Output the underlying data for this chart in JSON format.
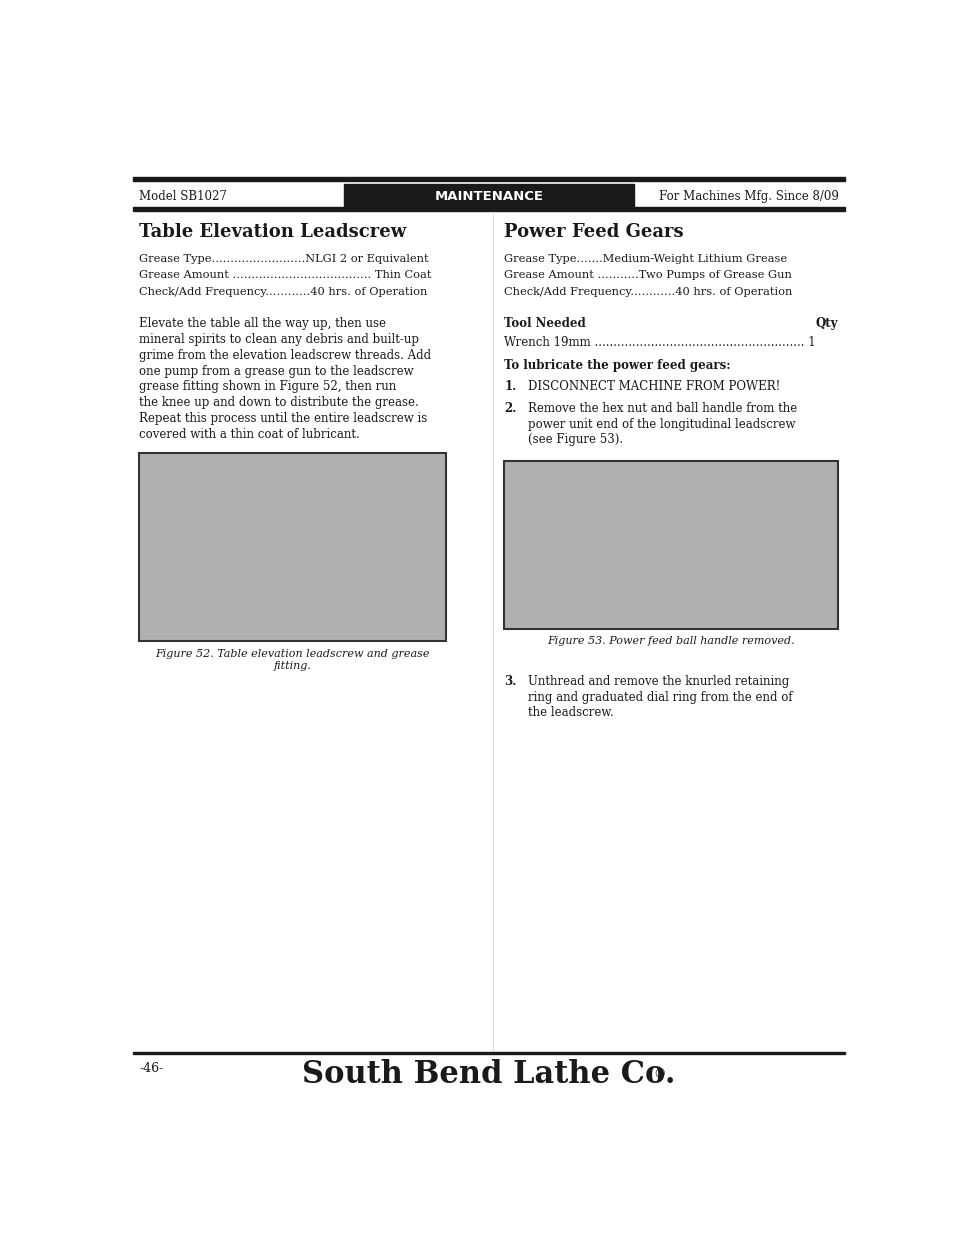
{
  "page_width": 9.54,
  "page_height": 12.35,
  "bg_color": "#ffffff",
  "header": {
    "left": "Model SB1027",
    "center": "MAINTENANCE",
    "right": "For Machines Mfg. Since 8/09",
    "bar_color": "#1a1a1a",
    "text_color_center": "#ffffff",
    "text_color_sides": "#1a1a1a"
  },
  "footer": {
    "left": "-46-",
    "center": "South Bend Lathe Co.",
    "center_dot": "®",
    "color": "#1a1a1a"
  },
  "left_section": {
    "title": "Table Elevation Leadscrew",
    "specs": [
      "Grease Type.........................NLGI 2 or Equivalent",
      "Grease Amount ..................................... Thin Coat",
      "Check/Add Frequency............40 hrs. of Operation"
    ],
    "body": [
      "Elevate the table all the way up, then use",
      "mineral spirits to clean any debris and built-up",
      "grime from the elevation leadscrew threads. Add",
      "one pump from a grease gun to the leadscrew",
      "grease fitting shown in Figure 52, then run",
      "the knee up and down to distribute the grease.",
      "Repeat this process until the entire leadscrew is",
      "covered with a thin coat of lubricant."
    ],
    "figure_caption": "Figure 52. Table elevation leadscrew and grease\nfitting."
  },
  "right_section": {
    "title": "Power Feed Gears",
    "specs": [
      "Grease Type.......Medium-Weight Lithium Grease",
      "Grease Amount ...........Two Pumps of Grease Gun",
      "Check/Add Frequency............40 hrs. of Operation"
    ],
    "tool_header_left": "Tool Needed",
    "tool_header_right": "Qty",
    "tool_row": "Wrench 19mm ........................................................ 1",
    "lubricate_header": "To lubricate the power feed gears:",
    "steps": [
      {
        "num": "1.",
        "text": "DISCONNECT MACHINE FROM POWER!",
        "bold": true
      },
      {
        "num": "2.",
        "text": "Remove the hex nut and ball handle from the\npower unit end of the longitudinal leadscrew\n(see Figure 53)."
      },
      {
        "num": "3.",
        "text": "Unthread and remove the knurled retaining\nring and graduated dial ring from the end of\nthe leadscrew."
      }
    ],
    "figure_caption": "Figure 53. Power feed ball handle removed."
  }
}
